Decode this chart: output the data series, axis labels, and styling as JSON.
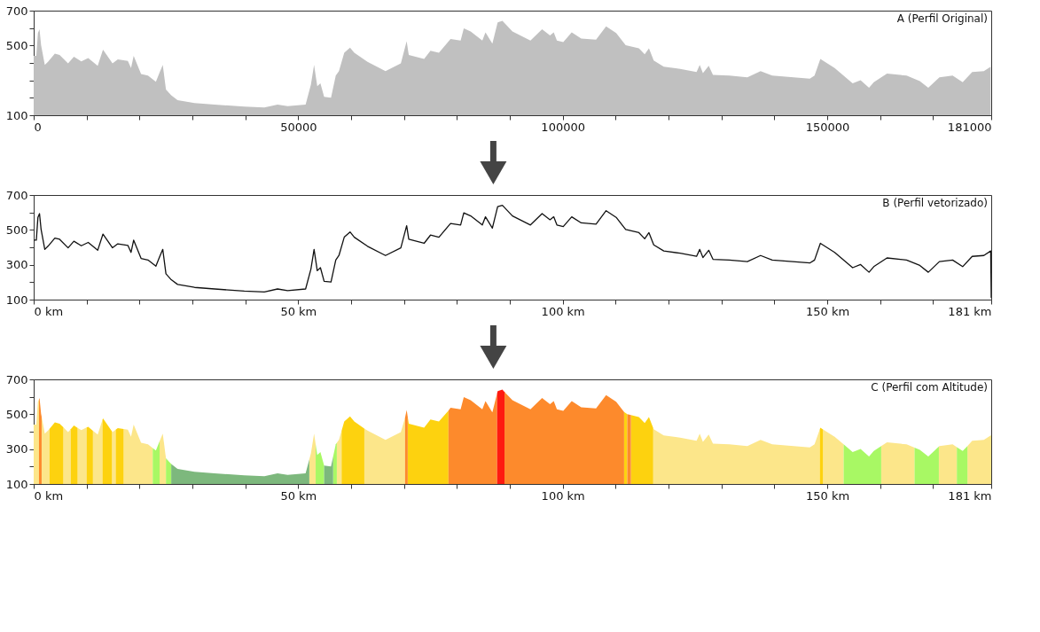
{
  "chart_data": [
    {
      "type": "area",
      "title": "A (Perfil Original)",
      "legend": false,
      "xlim": [
        0,
        181000
      ],
      "xticks": [
        0,
        {
          "value": 10000,
          "label": null
        },
        {
          "value": 20000,
          "label": null
        },
        {
          "value": 30000,
          "label": null
        },
        {
          "value": 40000,
          "label": null
        },
        50000,
        {
          "value": 60000,
          "label": null
        },
        {
          "value": 70000,
          "label": null
        },
        {
          "value": 80000,
          "label": null
        },
        {
          "value": 90000,
          "label": null
        },
        100000,
        {
          "value": 110000,
          "label": null
        },
        {
          "value": 120000,
          "label": null
        },
        {
          "value": 130000,
          "label": null
        },
        {
          "value": 140000,
          "label": null
        },
        150000,
        {
          "value": 160000,
          "label": null
        },
        {
          "value": 170000,
          "label": null
        },
        181000
      ],
      "ylim": [
        100,
        700
      ],
      "yticks": [
        100,
        {
          "value": 200,
          "label": null
        },
        {
          "value": 300,
          "label": null
        },
        {
          "value": 400,
          "label": null
        },
        500,
        {
          "value": 600,
          "label": null
        },
        700
      ],
      "x": [
        0,
        500,
        800,
        1100,
        1400,
        2100,
        2700,
        4000,
        4900,
        6500,
        7600,
        9000,
        10300,
        12100,
        13100,
        14900,
        15900,
        17800,
        18400,
        18900,
        20300,
        21600,
        23100,
        23800,
        24400,
        25000,
        26000,
        27200,
        30400,
        34200,
        39800,
        43600,
        46100,
        48000,
        51400,
        52400,
        53000,
        53600,
        54200,
        54900,
        56200,
        57100,
        57700,
        58700,
        59800,
        60600,
        63100,
        66500,
        69400,
        70500,
        70900,
        73800,
        75000,
        76600,
        78800,
        80700,
        81300,
        82600,
        84800,
        85400,
        86700,
        87700,
        88600,
        90500,
        93900,
        96100,
        97600,
        98300,
        98900,
        100100,
        101700,
        103500,
        106300,
        108200,
        110100,
        111900,
        114400,
        115500,
        116300,
        117200,
        119100,
        122200,
        125300,
        125900,
        126500,
        127600,
        128400,
        131500,
        134900,
        137400,
        139600,
        146700,
        147600,
        148700,
        151400,
        154800,
        156300,
        157900,
        158800,
        161300,
        165000,
        167500,
        169100,
        171200,
        173700,
        175600,
        177400,
        179600,
        180900
      ],
      "series": [
        {
          "color": "#c0c0c0",
          "values": [
            441,
            441,
            572,
            593,
            502,
            388,
            406,
            453,
            446,
            397,
            435,
            409,
            428,
            383,
            476,
            397,
            420,
            411,
            371,
            441,
            336,
            327,
            292,
            345,
            388,
            248,
            214,
            187,
            170,
            161,
            149,
            144,
            161,
            152,
            161,
            275,
            388,
            266,
            283,
            205,
            201,
            327,
            353,
            458,
            488,
            458,
            406,
            353,
            397,
            524,
            446,
            423,
            470,
            458,
            537,
            528,
            598,
            580,
            528,
            575,
            510,
            633,
            641,
            580,
            528,
            593,
            558,
            575,
            528,
            519,
            575,
            540,
            533,
            610,
            572,
            502,
            484,
            449,
            484,
            414,
            379,
            366,
            348,
            388,
            341,
            383,
            331,
            327,
            318,
            353,
            327,
            310,
            327,
            423,
            371,
            283,
            301,
            257,
            289,
            339,
            327,
            296,
            257,
            318,
            327,
            289,
            348,
            353,
            379
          ]
        }
      ]
    },
    {
      "type": "line",
      "title": "B (Perfil vetorizado)",
      "legend": false,
      "line_style": "solid",
      "marker": "none",
      "xlim": [
        0,
        181
      ],
      "xticks": [
        {
          "value": 0,
          "label": "0 km"
        },
        {
          "value": 10,
          "label": null
        },
        {
          "value": 20,
          "label": null
        },
        {
          "value": 30,
          "label": null
        },
        {
          "value": 40,
          "label": null
        },
        {
          "value": 50,
          "label": "50 km"
        },
        {
          "value": 60,
          "label": null
        },
        {
          "value": 70,
          "label": null
        },
        {
          "value": 80,
          "label": null
        },
        {
          "value": 90,
          "label": null
        },
        {
          "value": 100,
          "label": "100 km"
        },
        {
          "value": 110,
          "label": null
        },
        {
          "value": 120,
          "label": null
        },
        {
          "value": 130,
          "label": null
        },
        {
          "value": 140,
          "label": null
        },
        {
          "value": 150,
          "label": "150 km"
        },
        {
          "value": 160,
          "label": null
        },
        {
          "value": 170,
          "label": null
        },
        {
          "value": 181,
          "label": "181 km"
        }
      ],
      "ylim": [
        100,
        700
      ],
      "yticks": [
        100,
        {
          "value": 200,
          "label": null
        },
        300,
        {
          "value": 400,
          "label": null
        },
        500,
        {
          "value": 600,
          "label": null
        },
        700
      ],
      "x": [
        0,
        0.5,
        0.8,
        1.1,
        1.4,
        2.1,
        2.7,
        4,
        4.9,
        6.5,
        7.6,
        9,
        10.3,
        12.1,
        13.1,
        14.9,
        15.9,
        17.8,
        18.4,
        18.9,
        20.3,
        21.6,
        23.1,
        23.8,
        24.4,
        25,
        26,
        27.2,
        30.4,
        34.2,
        39.8,
        43.6,
        46.1,
        48,
        51.4,
        52.4,
        53,
        53.6,
        54.2,
        54.9,
        56.2,
        57.1,
        57.7,
        58.7,
        59.8,
        60.6,
        63.1,
        66.5,
        69.4,
        70.5,
        70.9,
        73.8,
        75,
        76.6,
        78.8,
        80.7,
        81.3,
        82.6,
        84.8,
        85.4,
        86.7,
        87.7,
        88.6,
        90.5,
        93.9,
        96.1,
        97.6,
        98.3,
        98.9,
        100.1,
        101.7,
        103.5,
        106.3,
        108.2,
        110.1,
        111.9,
        114.4,
        115.5,
        116.3,
        117.2,
        119.1,
        122.2,
        125.3,
        125.9,
        126.5,
        127.6,
        128.4,
        131.5,
        134.9,
        137.4,
        139.6,
        146.7,
        147.6,
        148.7,
        151.4,
        154.8,
        156.3,
        157.9,
        158.8,
        161.3,
        165,
        167.5,
        169.1,
        171.2,
        173.7,
        175.6,
        177.4,
        179.6,
        180.9,
        181
      ],
      "series": [
        {
          "color": "#111111",
          "values": [
            441,
            441,
            572,
            593,
            502,
            388,
            406,
            453,
            446,
            397,
            435,
            409,
            428,
            383,
            476,
            397,
            420,
            411,
            371,
            441,
            336,
            327,
            292,
            345,
            388,
            248,
            214,
            187,
            170,
            161,
            149,
            144,
            161,
            152,
            161,
            275,
            388,
            266,
            283,
            205,
            201,
            327,
            353,
            458,
            488,
            458,
            406,
            353,
            397,
            524,
            446,
            423,
            470,
            458,
            537,
            528,
            598,
            580,
            528,
            575,
            510,
            633,
            641,
            580,
            528,
            593,
            558,
            575,
            528,
            519,
            575,
            540,
            533,
            610,
            572,
            502,
            484,
            449,
            484,
            414,
            379,
            366,
            348,
            388,
            341,
            383,
            331,
            327,
            318,
            353,
            327,
            310,
            327,
            423,
            371,
            283,
            301,
            257,
            289,
            339,
            327,
            296,
            257,
            318,
            327,
            289,
            348,
            353,
            379,
            110
          ]
        }
      ]
    },
    {
      "type": "area",
      "title": "C (Perfil com Altitude)",
      "legend": false,
      "xlim": [
        0,
        181
      ],
      "xticks": [
        {
          "value": 0,
          "label": "0 km"
        },
        {
          "value": 10,
          "label": null
        },
        {
          "value": 20,
          "label": null
        },
        {
          "value": 30,
          "label": null
        },
        {
          "value": 40,
          "label": null
        },
        {
          "value": 50,
          "label": "50 km"
        },
        {
          "value": 60,
          "label": null
        },
        {
          "value": 70,
          "label": null
        },
        {
          "value": 80,
          "label": null
        },
        {
          "value": 90,
          "label": null
        },
        {
          "value": 100,
          "label": "100 km"
        },
        {
          "value": 110,
          "label": null
        },
        {
          "value": 120,
          "label": null
        },
        {
          "value": 130,
          "label": null
        },
        {
          "value": 140,
          "label": null
        },
        {
          "value": 150,
          "label": "150 km"
        },
        {
          "value": 160,
          "label": null
        },
        {
          "value": 170,
          "label": null
        },
        {
          "value": 181,
          "label": "181 km"
        }
      ],
      "ylim": [
        100,
        700
      ],
      "yticks": [
        100,
        {
          "value": 200,
          "label": null
        },
        300,
        {
          "value": 400,
          "label": null
        },
        500,
        {
          "value": 600,
          "label": null
        },
        700
      ],
      "series": [
        {
          "color": "#fce68a",
          "x": [
            0,
            0.5,
            0.8,
            1,
            null,
            1.5,
            2.1,
            2.7,
            3,
            null,
            5.6,
            6.5,
            7,
            null,
            8.3,
            9,
            10,
            null,
            11.2,
            12.1,
            13,
            null,
            14.8,
            14.9,
            15.5,
            null,
            17,
            17.8,
            18.4,
            18.9,
            20.3,
            21.6,
            22.5,
            null,
            23.8,
            24.4,
            25,
            null,
            52.1,
            52.4,
            53,
            53.3,
            null,
            57.3,
            57.7,
            58.2,
            null,
            62.5,
            63.1,
            66.5,
            69.4,
            70.2,
            null,
            117.1,
            117.2,
            119.1,
            122.2,
            125.3,
            125.9,
            126.5,
            127.6,
            128.4,
            131.5,
            134.9,
            137.4,
            139.6,
            146.7,
            147.6,
            148.6,
            null,
            149.2,
            151.4,
            153.1,
            null,
            160.2,
            161.3,
            165,
            166.5,
            null,
            171.1,
            171.2,
            173.7,
            174.5,
            null,
            176.5,
            177.4,
            179.6,
            180.9,
            181
          ],
          "values": [
            441,
            441,
            572,
            586,
            null,
            486,
            388,
            406,
            417,
            null,
            425,
            397,
            414,
            null,
            422,
            409,
            424,
            null,
            405,
            383,
            467,
            null,
            401,
            397,
            411,
            null,
            415,
            411,
            371,
            441,
            336,
            327,
            306,
            null,
            345,
            388,
            248,
            null,
            241,
            275,
            388,
            327,
            null,
            336,
            353,
            405,
            null,
            418,
            406,
            353,
            397,
            480,
            null,
            422,
            414,
            379,
            366,
            348,
            388,
            341,
            383,
            331,
            327,
            318,
            353,
            327,
            310,
            327,
            414,
            null,
            413,
            371,
            327,
            null,
            317,
            339,
            327,
            308,
            null,
            315,
            318,
            327,
            311,
            null,
            318,
            348,
            353,
            379,
            380
          ]
        },
        {
          "color": "#fdd20f",
          "x": [
            3,
            4,
            4.9,
            5.6,
            null,
            7,
            7.6,
            8.3,
            null,
            10,
            10.3,
            11.2,
            null,
            13,
            13.1,
            14.8,
            null,
            15.5,
            15.9,
            17,
            null,
            58.2,
            58.7,
            59.8,
            60.6,
            62.5,
            null,
            70.7,
            70.9,
            73.8,
            75,
            76.6,
            78.4,
            null,
            111.6,
            112.2,
            null,
            112.9,
            114.4,
            115.5,
            116.3,
            117.1,
            null,
            148.6,
            148.7,
            149.2
          ],
          "values": [
            417,
            453,
            446,
            425,
            null,
            414,
            435,
            422,
            null,
            424,
            428,
            405,
            null,
            467,
            476,
            401,
            null,
            411,
            420,
            415,
            null,
            405,
            458,
            488,
            458,
            418,
            null,
            485,
            446,
            423,
            470,
            458,
            521,
            null,
            513,
            500,
            null,
            495,
            484,
            449,
            484,
            422,
            null,
            414,
            423,
            413
          ]
        },
        {
          "color": "#fd8a2c",
          "x": [
            1,
            1.1,
            1.4,
            1.5,
            null,
            70.2,
            70.5,
            70.7,
            null,
            78.4,
            78.8,
            80.7,
            81.3,
            82.6,
            84.8,
            85.4,
            86.7,
            87.6,
            null,
            89,
            90.5,
            93.9,
            96.1,
            97.6,
            98.3,
            98.9,
            100.1,
            101.7,
            103.5,
            106.3,
            108.2,
            110.1,
            111.6,
            null,
            112.2,
            112.9
          ],
          "values": [
            586,
            593,
            502,
            486,
            null,
            480,
            524,
            485,
            null,
            521,
            537,
            528,
            598,
            580,
            528,
            575,
            510,
            620,
            null,
            628,
            580,
            528,
            593,
            558,
            575,
            528,
            519,
            575,
            540,
            533,
            610,
            572,
            513,
            null,
            500,
            495
          ]
        },
        {
          "color": "#fe1a10",
          "x": [
            87.6,
            87.7,
            88.6,
            89
          ],
          "values": [
            620,
            633,
            641,
            628
          ]
        },
        {
          "color": "#a8f864",
          "x": [
            22.5,
            23.1,
            23.8,
            null,
            25,
            26,
            null,
            53.3,
            53.6,
            54.2,
            54.9,
            null,
            56.6,
            57.1,
            57.3,
            null,
            153.1,
            154.8,
            156.3,
            157.9,
            158.8,
            160.2,
            null,
            166.5,
            167.5,
            169.1,
            171.1,
            null,
            174.5,
            175.6,
            176.5
          ],
          "values": [
            306,
            292,
            345,
            null,
            248,
            214,
            null,
            327,
            266,
            283,
            205,
            null,
            257,
            327,
            336,
            null,
            327,
            283,
            301,
            257,
            289,
            317,
            null,
            308,
            296,
            257,
            315,
            null,
            311,
            289,
            318
          ]
        },
        {
          "color": "#7db87d",
          "x": [
            26,
            27.2,
            30.4,
            34.2,
            39.8,
            43.6,
            46.1,
            48,
            51.4,
            52.1,
            null,
            54.9,
            56.2,
            56.6
          ],
          "values": [
            214,
            187,
            170,
            161,
            149,
            144,
            161,
            152,
            161,
            241,
            null,
            205,
            201,
            257
          ]
        }
      ]
    }
  ]
}
